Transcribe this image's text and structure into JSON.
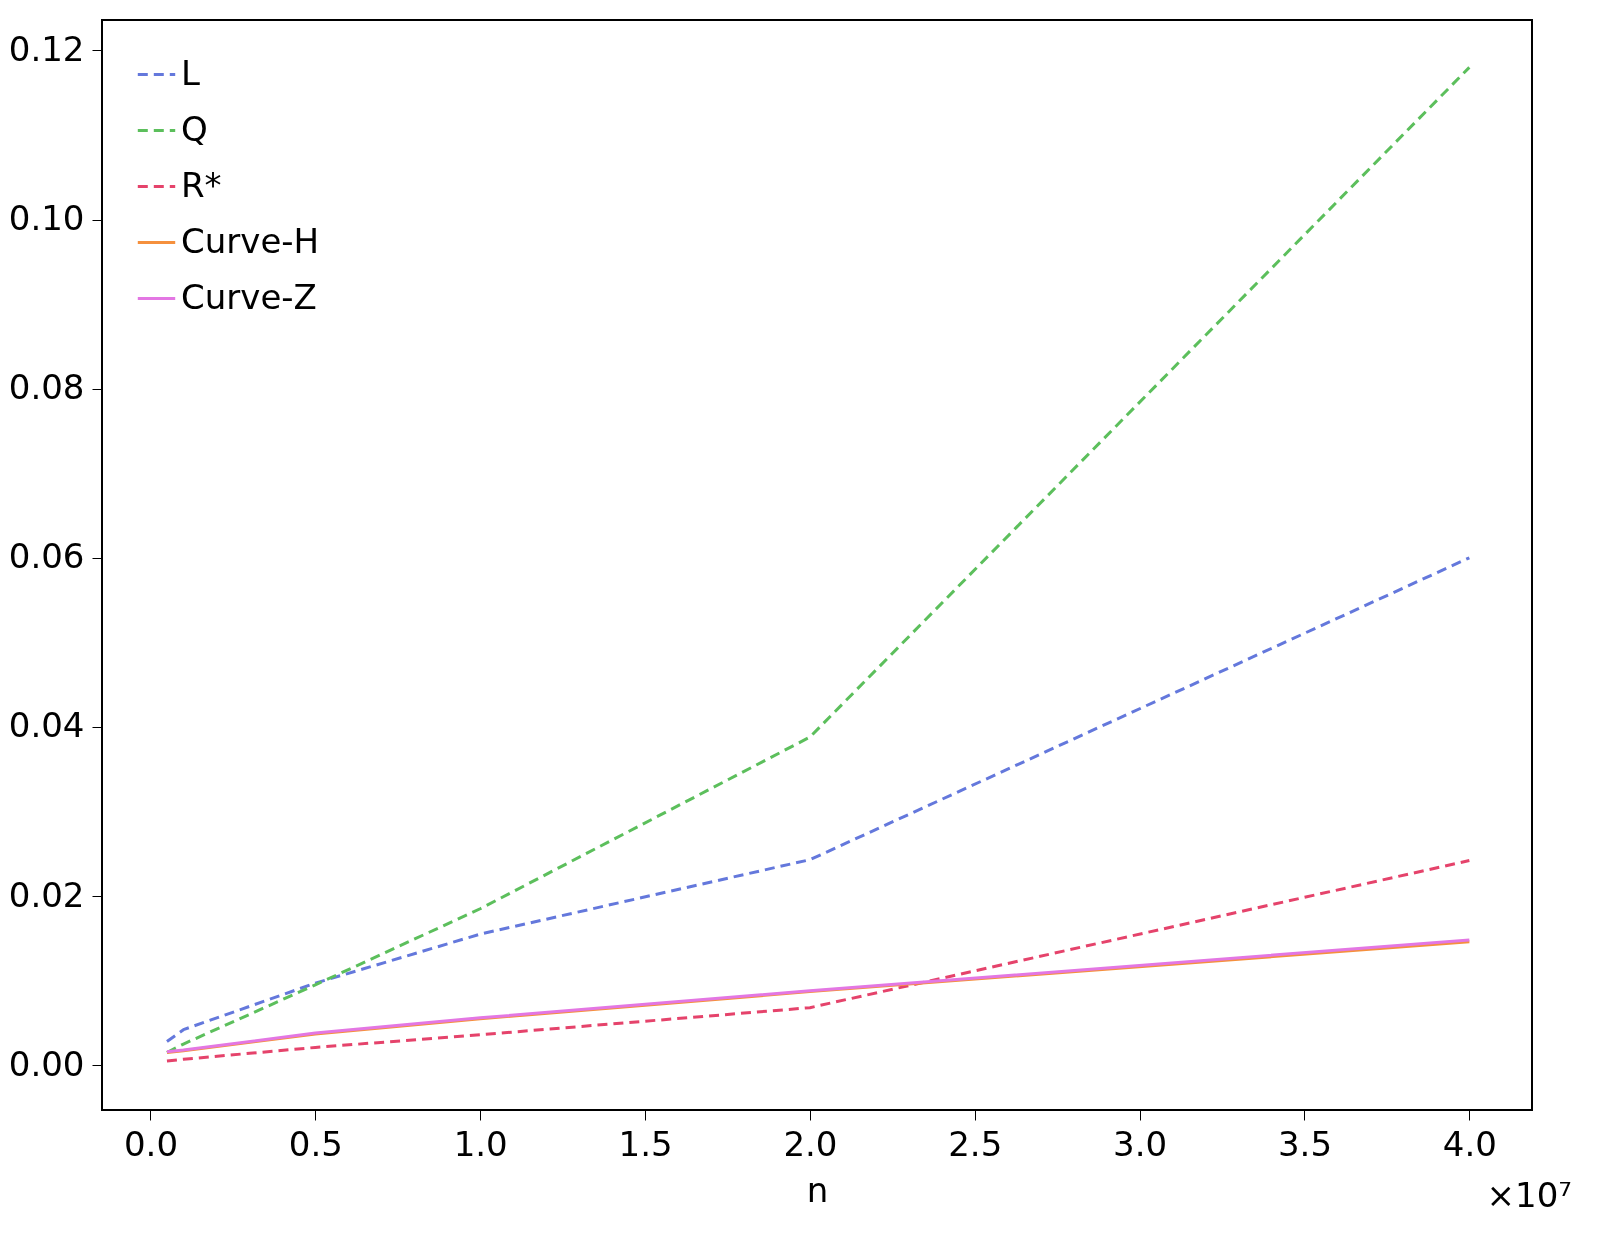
{
  "chart_data": {
    "type": "line",
    "xlabel": "n",
    "x": [
      0.05,
      0.1,
      0.5,
      1,
      2,
      4
    ],
    "xlim": [
      -0.147,
      4.19
    ],
    "xticks": [
      {
        "value": 0,
        "label": "0.0"
      },
      {
        "value": 0.5,
        "label": "0.5"
      },
      {
        "value": 1,
        "label": "1.0"
      },
      {
        "value": 1.5,
        "label": "1.5"
      },
      {
        "value": 2,
        "label": "2.0"
      },
      {
        "value": 2.5,
        "label": "2.5"
      },
      {
        "value": 3,
        "label": "3.0"
      },
      {
        "value": 3.5,
        "label": "3.5"
      },
      {
        "value": 4,
        "label": "4.0"
      }
    ],
    "ylim": [
      -0.0053,
      0.1236
    ],
    "yticks": [
      {
        "value": 0,
        "label": "0.00"
      },
      {
        "value": 0.02,
        "label": "0.02"
      },
      {
        "value": 0.04,
        "label": "0.04"
      },
      {
        "value": 0.06,
        "label": "0.06"
      },
      {
        "value": 0.08,
        "label": "0.08"
      },
      {
        "value": 0.1,
        "label": "0.10"
      },
      {
        "value": 0.12,
        "label": "0.12"
      }
    ],
    "series": [
      {
        "name": "L",
        "color": "#6478dc",
        "line_style": "dashed",
        "values": [
          0.0028,
          0.0042,
          0.0097,
          0.0155,
          0.0243,
          0.06
        ]
      },
      {
        "name": "Q",
        "color": "#5cbf5c",
        "line_style": "dashed",
        "values": [
          0.0015,
          0.0025,
          0.0095,
          0.0185,
          0.0388,
          0.118
        ]
      },
      {
        "name": "R*",
        "color": "#e5436b",
        "line_style": "dashed",
        "values": [
          0.0005,
          0.0007,
          0.0021,
          0.0036,
          0.0068,
          0.0242
        ]
      },
      {
        "name": "Curve-H",
        "color": "#f5903d",
        "line_style": "solid",
        "values": [
          0.0015,
          0.0017,
          0.0037,
          0.0055,
          0.0087,
          0.0146
        ]
      },
      {
        "name": "Curve-Z",
        "color": "#e377e3",
        "line_style": "solid",
        "values": [
          0.0016,
          0.0018,
          0.0038,
          0.0056,
          0.0088,
          0.0148
        ]
      }
    ],
    "legend": "top left",
    "grid": false,
    "marker": "none",
    "annotations": [
      "×10⁷"
    ]
  }
}
